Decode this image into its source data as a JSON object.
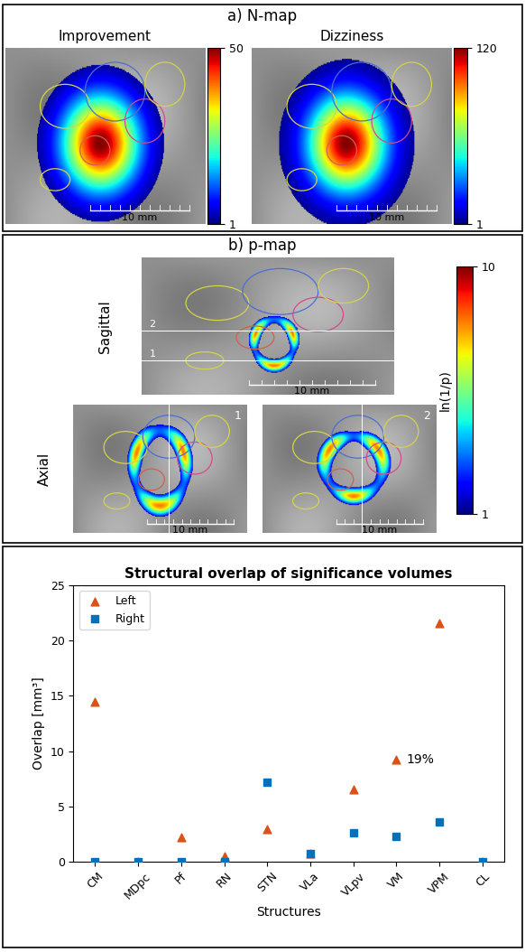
{
  "panel_a": {
    "title": "a) N-map",
    "images": [
      {
        "title": "Improvement",
        "colorbar": {
          "range": [
            1,
            50
          ],
          "ticks": [
            1,
            50
          ]
        }
      },
      {
        "title": "Dizziness",
        "colorbar": {
          "range": [
            1,
            120
          ],
          "ticks": [
            1,
            120
          ]
        }
      }
    ],
    "scale_bar": "10 mm"
  },
  "panel_b": {
    "title": "b) p-map",
    "views": [
      "Sagittal",
      "Axial"
    ],
    "slice_labels": [
      "1",
      "2"
    ],
    "colorbar": {
      "label": "ln(1/p)",
      "range": [
        1,
        10
      ],
      "ticks": [
        1,
        10
      ]
    },
    "scale_bar": "10 mm"
  },
  "chart_data": {
    "type": "scatter",
    "title": "Structural overlap of significance volumes",
    "x_label": "Structures",
    "y_label": "Overlap [mm³]",
    "categories": [
      "CM",
      "MDpc",
      "Pf",
      "RN",
      "STN",
      "VLa",
      "VLpv",
      "VM",
      "VPM",
      "CL"
    ],
    "series": [
      {
        "name": "Left",
        "color": "#d95319",
        "marker": "triangle",
        "values": [
          14.5,
          0,
          2.2,
          0.5,
          2.9,
          0.7,
          6.5,
          9.2,
          21.6,
          0
        ]
      },
      {
        "name": "Right",
        "color": "#0072bd",
        "marker": "square",
        "values": [
          0,
          0,
          0,
          0,
          7.2,
          0.7,
          2.6,
          2.3,
          3.6,
          0
        ]
      }
    ],
    "ylim": [
      0,
      25
    ],
    "yticks": [
      0,
      5,
      10,
      15,
      20,
      25
    ],
    "legend": "upper left",
    "annotations": [
      {
        "text": "19%",
        "category": "VM",
        "series": "Left"
      }
    ]
  }
}
